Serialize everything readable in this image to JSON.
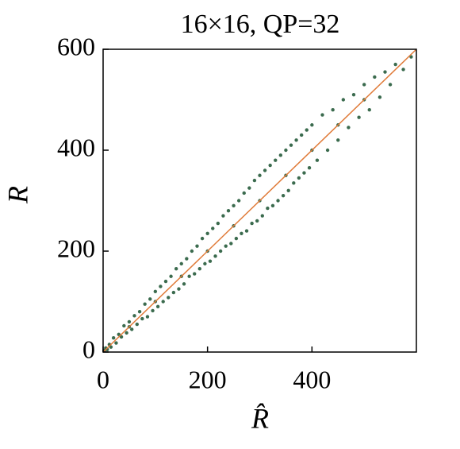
{
  "chart_data": {
    "type": "scatter",
    "title": "16×16, QP=32",
    "xlabel": "R̂",
    "ylabel": "R",
    "xlim": [
      0,
      600
    ],
    "ylim": [
      0,
      600
    ],
    "xticks": [
      0,
      200,
      400
    ],
    "yticks": [
      0,
      200,
      400,
      600
    ],
    "color": "#3b6b4e",
    "x": [
      2,
      5,
      8,
      12,
      15,
      20,
      25,
      30,
      35,
      40,
      45,
      50,
      55,
      60,
      65,
      70,
      75,
      80,
      85,
      90,
      95,
      100,
      105,
      110,
      115,
      120,
      125,
      130,
      135,
      140,
      145,
      150,
      155,
      160,
      165,
      170,
      175,
      180,
      185,
      190,
      195,
      200,
      205,
      210,
      215,
      220,
      225,
      230,
      235,
      240,
      245,
      250,
      255,
      260,
      265,
      270,
      275,
      280,
      285,
      290,
      295,
      300,
      305,
      310,
      315,
      320,
      325,
      330,
      335,
      340,
      345,
      350,
      355,
      360,
      365,
      370,
      375,
      380,
      385,
      390,
      395,
      400,
      410,
      420,
      430,
      440,
      450,
      460,
      470,
      480,
      490,
      500,
      510,
      520,
      530,
      540,
      550,
      560,
      575,
      590,
      100,
      200,
      300,
      400,
      500,
      150,
      250,
      350,
      450,
      50
    ],
    "y": [
      3,
      8,
      5,
      15,
      10,
      28,
      18,
      35,
      30,
      52,
      38,
      60,
      45,
      72,
      55,
      80,
      66,
      95,
      70,
      105,
      82,
      120,
      90,
      130,
      100,
      140,
      108,
      150,
      118,
      165,
      125,
      175,
      135,
      185,
      150,
      200,
      155,
      210,
      165,
      225,
      175,
      235,
      180,
      245,
      190,
      255,
      200,
      270,
      210,
      280,
      215,
      290,
      225,
      300,
      235,
      315,
      240,
      325,
      255,
      340,
      260,
      350,
      270,
      360,
      285,
      370,
      290,
      380,
      300,
      390,
      310,
      400,
      320,
      410,
      335,
      420,
      345,
      430,
      355,
      440,
      365,
      450,
      380,
      470,
      400,
      480,
      420,
      500,
      445,
      510,
      465,
      530,
      480,
      545,
      505,
      555,
      530,
      570,
      560,
      585,
      100,
      200,
      300,
      400,
      500,
      150,
      250,
      350,
      450,
      50
    ],
    "reference_line": {
      "x": [
        0,
        600
      ],
      "y": [
        0,
        600
      ],
      "color": "#e07b39"
    }
  }
}
